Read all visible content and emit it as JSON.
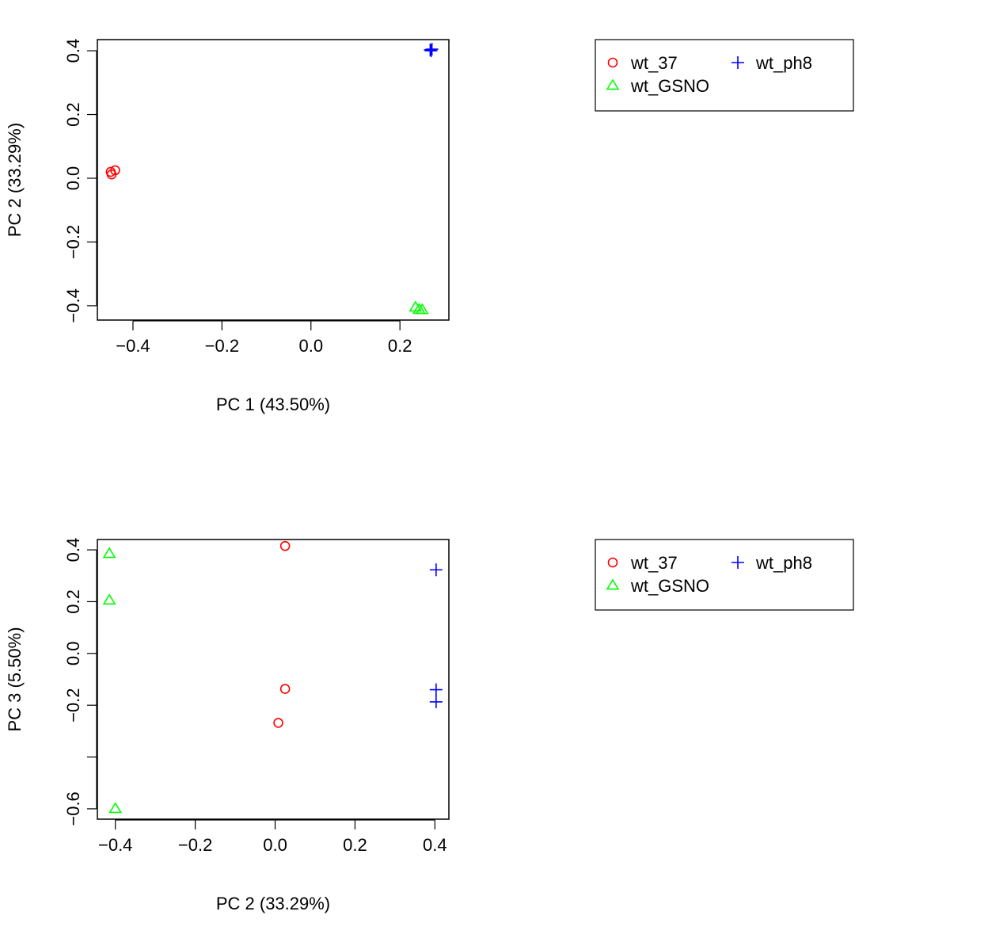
{
  "chart_data": [
    {
      "type": "scatter",
      "title": "",
      "xlabel": "PC 1 (43.50%)",
      "ylabel": "PC 2 (33.29%)",
      "xlim": [
        -0.48,
        0.31
      ],
      "ylim": [
        -0.445,
        0.435
      ],
      "xticks": [
        -0.4,
        -0.2,
        0.0,
        0.2
      ],
      "xtick_labels": [
        "−0.4",
        "−0.2",
        "0.0",
        "0.2"
      ],
      "yticks": [
        -0.4,
        -0.2,
        0.0,
        0.2,
        0.4
      ],
      "ytick_labels": [
        "−0.4",
        "−0.2",
        "0.0",
        "0.2",
        "0.4"
      ],
      "grid": false,
      "legend_position": "right",
      "series": [
        {
          "name": "wt_37",
          "marker": "circle",
          "color": "#ff0000",
          "points": [
            [
              -0.45,
              0.02
            ],
            [
              -0.44,
              0.025
            ],
            [
              -0.448,
              0.012
            ]
          ]
        },
        {
          "name": "wt_GSNO",
          "marker": "triangle",
          "color": "#00ff00",
          "points": [
            [
              0.235,
              -0.405
            ],
            [
              0.243,
              -0.412
            ],
            [
              0.25,
              -0.413
            ]
          ]
        },
        {
          "name": "wt_ph8",
          "marker": "plus",
          "color": "#0000ff",
          "points": [
            [
              0.268,
              0.403
            ],
            [
              0.272,
              0.405
            ],
            [
              0.27,
              0.4
            ]
          ]
        }
      ]
    },
    {
      "type": "scatter",
      "title": "",
      "xlabel": "PC 2 (33.29%)",
      "ylabel": "PC 3 (5.50%)",
      "xlim": [
        -0.445,
        0.435
      ],
      "ylim": [
        -0.64,
        0.44
      ],
      "xticks": [
        -0.4,
        -0.2,
        0.0,
        0.2,
        0.4
      ],
      "xtick_labels": [
        "−0.4",
        "−0.2",
        "0.0",
        "0.2",
        "0.4"
      ],
      "yticks": [
        -0.6,
        -0.4,
        -0.2,
        0.0,
        0.2,
        0.4
      ],
      "ytick_labels": [
        "−0.6",
        "",
        "−0.2",
        "0.0",
        "0.2",
        "0.4"
      ],
      "grid": false,
      "legend_position": "right",
      "series": [
        {
          "name": "wt_37",
          "marker": "circle",
          "color": "#ff0000",
          "points": [
            [
              0.025,
              0.415
            ],
            [
              0.025,
              -0.137
            ],
            [
              0.008,
              -0.268
            ]
          ]
        },
        {
          "name": "wt_GSNO",
          "marker": "triangle",
          "color": "#00ff00",
          "points": [
            [
              -0.415,
              0.385
            ],
            [
              -0.415,
              0.205
            ],
            [
              -0.4,
              -0.6
            ]
          ]
        },
        {
          "name": "wt_ph8",
          "marker": "plus",
          "color": "#0000ff",
          "points": [
            [
              0.403,
              0.323
            ],
            [
              0.403,
              -0.14
            ],
            [
              0.403,
              -0.187
            ]
          ]
        }
      ]
    }
  ]
}
